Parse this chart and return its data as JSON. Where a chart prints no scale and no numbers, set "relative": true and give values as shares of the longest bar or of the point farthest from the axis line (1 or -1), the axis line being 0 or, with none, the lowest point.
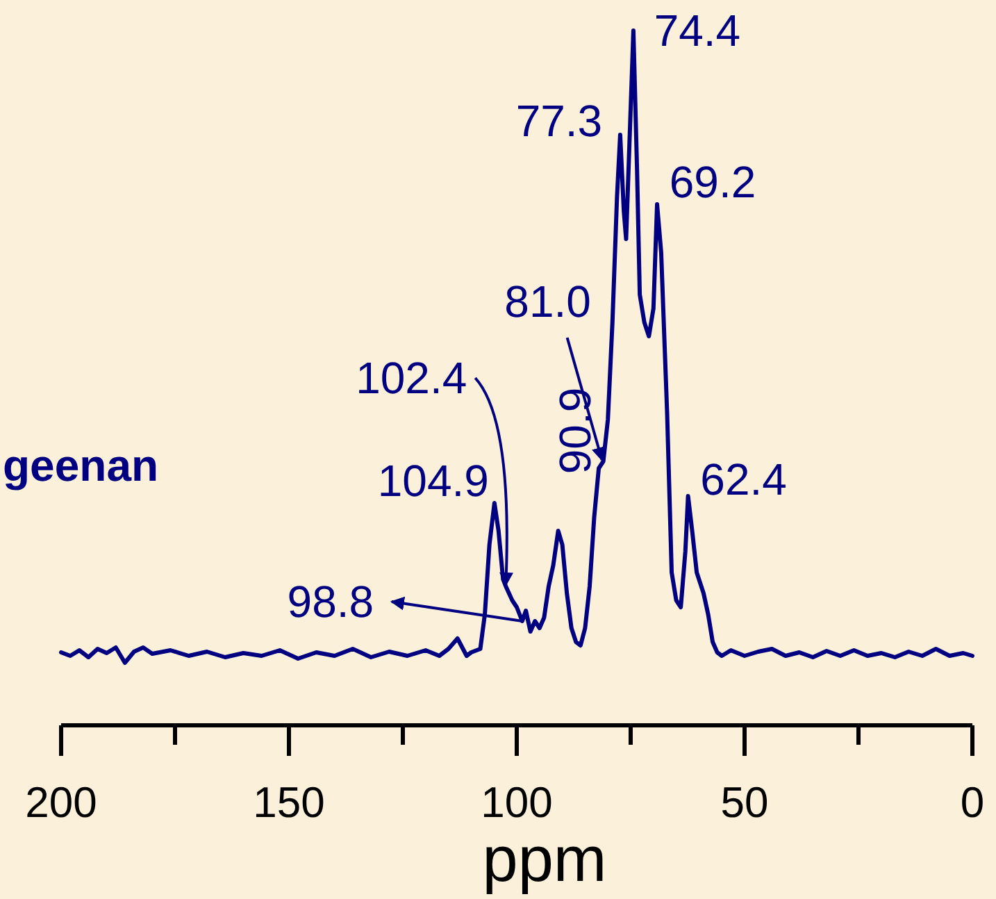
{
  "chart_data": {
    "type": "line",
    "relative": true,
    "xlabel": "ppm",
    "xlim": [
      200,
      0
    ],
    "xticks": [
      200,
      {
        "value": 175,
        "label": null
      },
      150,
      {
        "value": 125,
        "label": null
      },
      100,
      {
        "value": 75,
        "label": null
      },
      50,
      {
        "value": 25,
        "label": null
      },
      0
    ],
    "grid": false,
    "legend": false,
    "marker": "none",
    "line_style": "solid",
    "series": [
      {
        "color": "#000080",
        "x": [
          200,
          198,
          196,
          194,
          192,
          190,
          188,
          186,
          184,
          182,
          180,
          176,
          172,
          168,
          164,
          160,
          156,
          152,
          148,
          144,
          140,
          136,
          132,
          128,
          124,
          120,
          117,
          115,
          113,
          111,
          110,
          108,
          107,
          106,
          104.9,
          104,
          103,
          102.4,
          101,
          100,
          98.8,
          98,
          97,
          96,
          95,
          94,
          93,
          92,
          90.9,
          90,
          89,
          88,
          87,
          86,
          85,
          84,
          83,
          82,
          81,
          80,
          79,
          78,
          77.3,
          76.5,
          76,
          75.2,
          74.4,
          73.6,
          73,
          72,
          71,
          70,
          69.2,
          68.3,
          67,
          66,
          65,
          64,
          63,
          62.4,
          61.5,
          60.5,
          59.5,
          59,
          58,
          57,
          56,
          55,
          53,
          50,
          47,
          44,
          41,
          38,
          35,
          32,
          29,
          26,
          23,
          20,
          17,
          14,
          11,
          8,
          5,
          2,
          0
        ],
        "values": [
          0.105,
          0.1,
          0.108,
          0.098,
          0.11,
          0.104,
          0.112,
          0.09,
          0.106,
          0.112,
          0.103,
          0.108,
          0.1,
          0.106,
          0.098,
          0.104,
          0.1,
          0.108,
          0.096,
          0.105,
          0.1,
          0.11,
          0.098,
          0.106,
          0.1,
          0.108,
          0.1,
          0.11,
          0.125,
          0.1,
          0.105,
          0.11,
          0.16,
          0.26,
          0.32,
          0.28,
          0.21,
          0.2,
          0.18,
          0.17,
          0.15,
          0.165,
          0.135,
          0.15,
          0.14,
          0.155,
          0.2,
          0.23,
          0.28,
          0.26,
          0.19,
          0.14,
          0.12,
          0.115,
          0.14,
          0.2,
          0.3,
          0.37,
          0.38,
          0.44,
          0.58,
          0.76,
          0.85,
          0.74,
          0.7,
          0.85,
          1.0,
          0.8,
          0.62,
          0.58,
          0.56,
          0.6,
          0.75,
          0.68,
          0.45,
          0.22,
          0.18,
          0.17,
          0.25,
          0.33,
          0.28,
          0.22,
          0.2,
          0.19,
          0.16,
          0.12,
          0.105,
          0.1,
          0.108,
          0.1,
          0.106,
          0.11,
          0.1,
          0.105,
          0.098,
          0.107,
          0.1,
          0.108,
          0.1,
          0.104,
          0.098,
          0.106,
          0.1,
          0.11,
          0.1,
          0.104,
          0.1
        ]
      }
    ],
    "annotations": [
      {
        "text": "104.9",
        "x": 104.9,
        "y": 0.32
      },
      {
        "text": "102.4",
        "x": 102.4,
        "y": 0.2
      },
      {
        "text": "98.8",
        "x": 98.8,
        "y": 0.15
      },
      {
        "text": "90.9",
        "x": 90.9,
        "y": 0.28
      },
      {
        "text": "81.0",
        "x": 81.0,
        "y": 0.38
      },
      {
        "text": "77.3",
        "x": 77.3,
        "y": 0.85
      },
      {
        "text": "74.4",
        "x": 74.4,
        "y": 1.0
      },
      {
        "text": "69.2",
        "x": 69.2,
        "y": 0.75
      },
      {
        "text": "62.4",
        "x": 62.4,
        "y": 0.33
      },
      "geenan"
    ]
  }
}
